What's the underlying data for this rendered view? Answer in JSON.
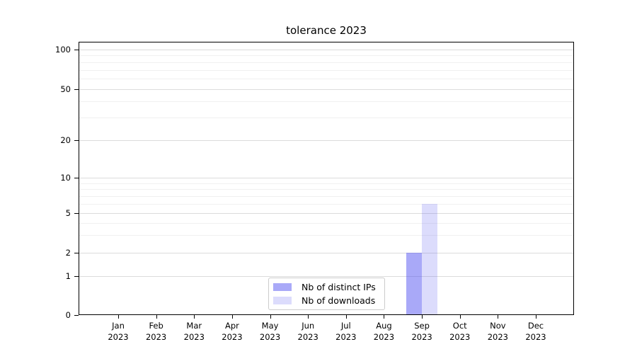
{
  "chart_data": {
    "type": "bar",
    "title": "tolerance 2023",
    "categories": [
      "Jan",
      "Feb",
      "Mar",
      "Apr",
      "May",
      "Jun",
      "Jul",
      "Aug",
      "Sep",
      "Oct",
      "Nov",
      "Dec"
    ],
    "year_label": "2023",
    "series": [
      {
        "name": "Nb of distinct IPs",
        "color": "rgba(80,80,240,0.49)",
        "color_hex": "#a9a9f4",
        "values": [
          0,
          0,
          0,
          0,
          0,
          0,
          0,
          0,
          2,
          0,
          0,
          0
        ]
      },
      {
        "name": "Nb of downloads",
        "color": "rgba(80,80,240,0.20)",
        "color_hex": "#dcdcf9",
        "values": [
          0,
          0,
          0,
          0,
          0,
          0,
          0,
          0,
          6,
          0,
          0,
          0
        ]
      }
    ],
    "y_axis": {
      "scale": "symlog",
      "tick_labels": [
        "0",
        "1",
        "2",
        "5",
        "10",
        "20",
        "50",
        "100"
      ],
      "tick_values": [
        0,
        1,
        2,
        5,
        10,
        20,
        50,
        100
      ],
      "minor_gridline_values": [
        3,
        4,
        6,
        7,
        8,
        9,
        30,
        40,
        60,
        70,
        80,
        90
      ]
    },
    "x_axis": {
      "tick_count": 12
    },
    "legend": {
      "position": "lower center"
    },
    "grid": true,
    "colors": {
      "background": "#ffffff",
      "major_grid": "#dcdcdc",
      "minor_grid": "#f0f0f0",
      "spine": "#000000",
      "text": "#000000",
      "legend_border": "#cccccc"
    }
  }
}
